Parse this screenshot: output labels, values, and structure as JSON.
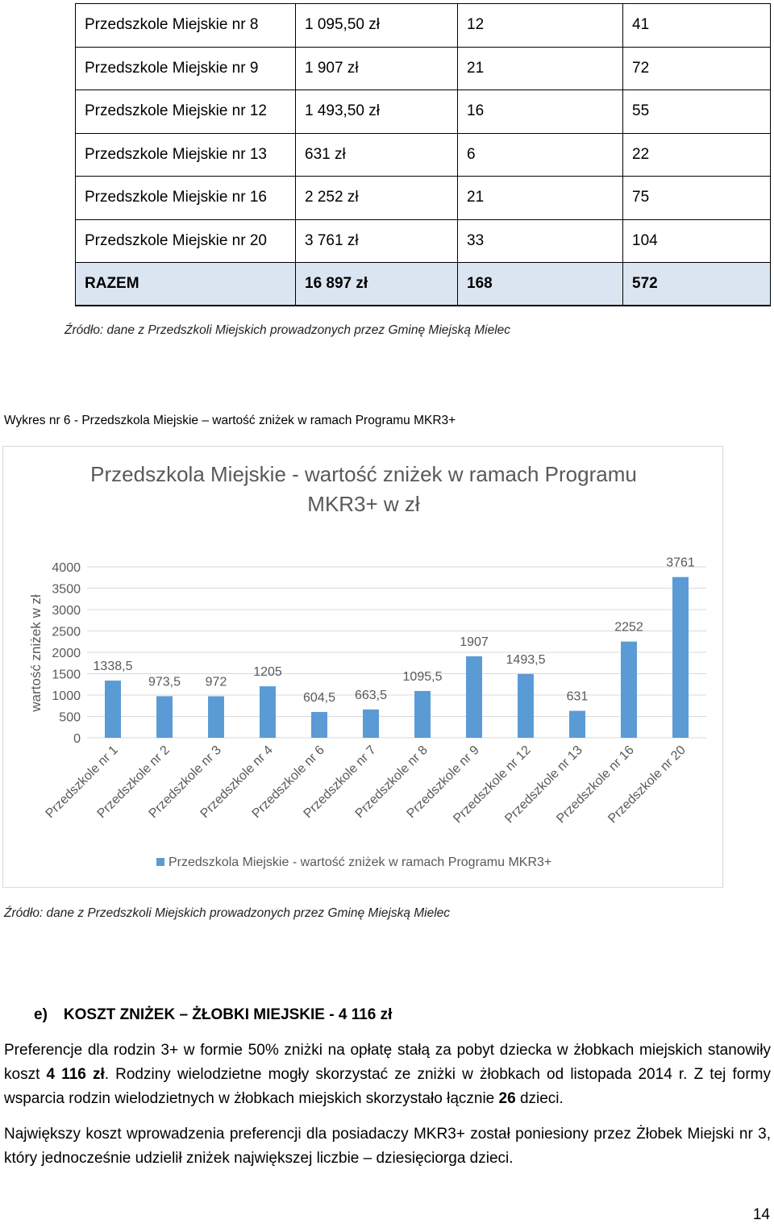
{
  "table": {
    "rows": [
      [
        "Przedszkole Miejskie nr 8",
        "1 095,50 zł",
        "12",
        "41"
      ],
      [
        "Przedszkole Miejskie nr 9",
        "1 907 zł",
        "21",
        "72"
      ],
      [
        "Przedszkole Miejskie nr 12",
        "1 493,50 zł",
        "16",
        "55"
      ],
      [
        "Przedszkole Miejskie nr 13",
        "631 zł",
        "6",
        "22"
      ],
      [
        "Przedszkole Miejskie nr 16",
        "2 252 zł",
        "21",
        "75"
      ],
      [
        "Przedszkole Miejskie nr 20",
        "3 761 zł",
        "33",
        "104"
      ]
    ],
    "total": [
      "RAZEM",
      "16 897 zł",
      "168",
      "572"
    ]
  },
  "source1": "Źródło: dane z Przedszkoli Miejskich prowadzonych przez Gminę Miejską Mielec",
  "caption": "Wykres nr 6 - Przedszkola Miejskie – wartość zniżek w ramach Programu MKR3+",
  "source2": "Źródło: dane z Przedszkoli Miejskich prowadzonych przez Gminę Miejską Mielec",
  "chart_data": {
    "type": "bar",
    "title_lines": [
      "Przedszkola Miejskie - wartość zniżek w ramach Programu",
      "MKR3+ w zł"
    ],
    "ylabel": "wartość zniżek w zł",
    "xlabel": "",
    "ylim": [
      0,
      4000
    ],
    "yticks": [
      "0",
      "500",
      "1000",
      "1500",
      "2000",
      "2500",
      "3000",
      "3500",
      "4000"
    ],
    "grid": true,
    "legend_position": "bottom",
    "color": "#5b9bd5",
    "categories": [
      "Przedszkole nr 1",
      "Przedszkole nr 2",
      "Przedszkole nr 3",
      "Przedszkole nr 4",
      "Przedszkole nr 6",
      "Przedszkole nr 7",
      "Przedszkole nr 8",
      "Przedszkole nr 9",
      "Przedszkole nr 12",
      "Przedszkole nr 13",
      "Przedszkole nr 16",
      "Przedszkole nr 20"
    ],
    "series": [
      {
        "name": "Przedszkola Miejskie - wartość zniżek w ramach Programu MKR3+",
        "values": [
          1338.5,
          973.5,
          972,
          1205,
          604.5,
          663.5,
          1095.5,
          1907,
          1493.5,
          631,
          2252,
          3761
        ],
        "labels": [
          "1338,5",
          "973,5",
          "972",
          "1205",
          "604,5",
          "663,5",
          "1095,5",
          "1907",
          "1493,5",
          "631",
          "2252",
          "3761"
        ]
      }
    ]
  },
  "section_e": {
    "letter": "e)",
    "title": "KOSZT ZNIŻEK – ŻŁOBKI MIEJSKIE - 4 116  zł"
  },
  "para1": {
    "t1": "Preferencje dla rodzin 3+ w formie 50% zniżki na opłatę stałą za pobyt dziecka w żłobkach miejskich stanowiły koszt ",
    "b1": "4 116 zł",
    "t2": ". Rodziny wielodzietne mogły skorzystać ze zniżki w żłobkach od listopada 2014 r. Z tej formy wsparcia rodzin wielodzietnych w żłobkach miejskich skorzystało łącznie ",
    "b2": "26",
    "t3": " dzieci."
  },
  "para2": "Największy koszt wprowadzenia preferencji dla posiadaczy MKR3+ został poniesiony przez Żłobek Miejski nr 3, który jednocześnie udzielił zniżek największej liczbie – dziesięciorga dzieci.",
  "page_number": "14"
}
